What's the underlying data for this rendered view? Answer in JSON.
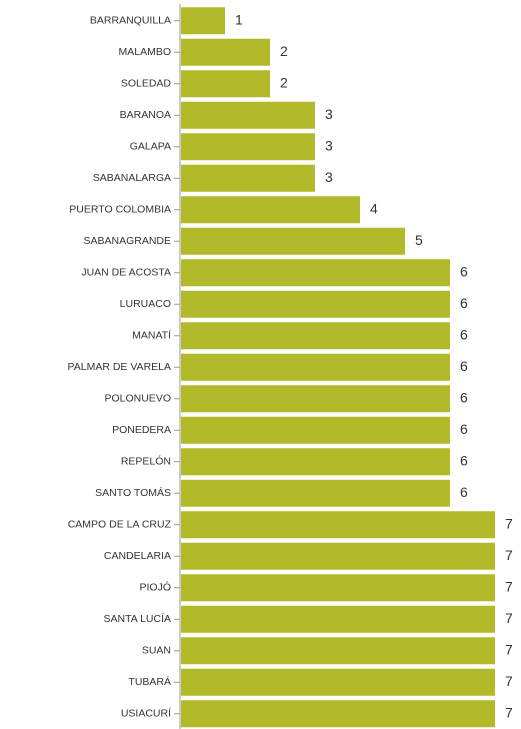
{
  "chart_data": {
    "type": "barh",
    "categories": [
      "BARRANQUILLA",
      "MALAMBO",
      "SOLEDAD",
      "BARANOA",
      "GALAPA",
      "SABANALARGA",
      "PUERTO COLOMBIA",
      "SABANAGRANDE",
      "JUAN DE ACOSTA",
      "LURUACO",
      "MANATÍ",
      "PALMAR DE VARELA",
      "POLONUEVO",
      "PONEDERA",
      "REPELÓN",
      "SANTO TOMÁS",
      "CAMPO DE LA CRUZ",
      "CANDELARIA",
      "PIOJÓ",
      "SANTA LUCÍA",
      "SUAN",
      "TUBARÁ",
      "USIACURÍ"
    ],
    "values": [
      1,
      2,
      2,
      3,
      3,
      3,
      4,
      5,
      6,
      6,
      6,
      6,
      6,
      6,
      6,
      6,
      7,
      7,
      7,
      7,
      7,
      7,
      7
    ],
    "color": "#b3ba2a"
  }
}
